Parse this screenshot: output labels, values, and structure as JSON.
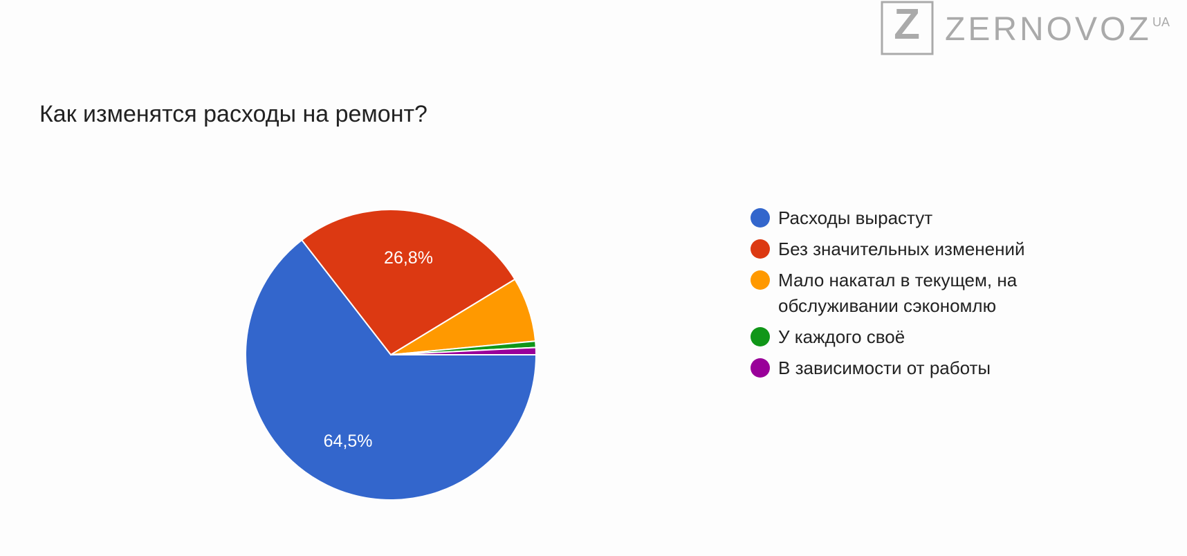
{
  "logo": {
    "brand": "ZERNOVOZ",
    "suffix": "UA"
  },
  "chart_data": {
    "type": "pie",
    "title": "Как изменятся расходы на ремонт?",
    "categories": [
      "Расходы вырастут",
      "Без значительных изменений",
      "Мало накатал в текущем, на обслуживании сэкономлю",
      "У каждого своё",
      "В зависимости от работы"
    ],
    "values": [
      64.5,
      26.8,
      7.2,
      0.7,
      0.8
    ],
    "value_labels": [
      "64,5%",
      "26,8%",
      null,
      null,
      null
    ],
    "colors": [
      "#3366cc",
      "#dc3912",
      "#ff9900",
      "#109618",
      "#990099"
    ],
    "legend": "right"
  }
}
